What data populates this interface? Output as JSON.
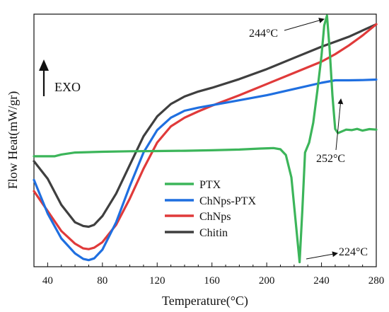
{
  "chart_data": {
    "type": "line",
    "title": "",
    "xlabel": "Temperature(°C)",
    "ylabel": "Flow Heat(mW/gr)",
    "xlim": [
      30,
      280
    ],
    "ylim": [
      0,
      100
    ],
    "x_ticks": [
      40,
      80,
      120,
      160,
      200,
      240,
      280
    ],
    "x_tick_labels": [
      "40",
      "80",
      "120",
      "160",
      "200",
      "240",
      "280"
    ],
    "y_tick_labels_shown": false,
    "grid": false,
    "legend_position": "lower-center",
    "exo_label": "EXO",
    "series": [
      {
        "name": "PTX",
        "color": "#3cb55a",
        "x": [
          30,
          38,
          45,
          50,
          60,
          80,
          100,
          120,
          140,
          160,
          180,
          195,
          205,
          210,
          214,
          218,
          221,
          224,
          226,
          228,
          231,
          234,
          237,
          240,
          242,
          244,
          246,
          248,
          250,
          252,
          255,
          258,
          262,
          266,
          270,
          275,
          280
        ],
        "y": [
          43.5,
          43.5,
          43.5,
          44.2,
          45.0,
          45.3,
          45.5,
          45.6,
          45.7,
          45.9,
          46.2,
          46.6,
          46.8,
          46.3,
          44.0,
          35.0,
          18.0,
          1.0,
          22.0,
          45.0,
          49.0,
          57.0,
          70.0,
          84.0,
          96.0,
          100.0,
          86.0,
          68.0,
          54.5,
          52.8,
          53.5,
          54.2,
          54.0,
          54.5,
          53.8,
          54.4,
          54.2
        ]
      },
      {
        "name": "ChNps-PTX",
        "color": "#1f6fe0",
        "x": [
          30,
          40,
          50,
          60,
          66,
          70,
          74,
          80,
          90,
          100,
          110,
          120,
          130,
          140,
          150,
          160,
          180,
          200,
          220,
          240,
          250,
          260,
          270,
          280
        ],
        "y": [
          34.0,
          20.5,
          10.5,
          4.5,
          2.3,
          1.8,
          2.5,
          6.0,
          17.0,
          31.5,
          45.0,
          54.0,
          59.0,
          61.8,
          63.0,
          64.0,
          66.0,
          68.0,
          70.5,
          73.0,
          74.0,
          74.0,
          74.1,
          74.3
        ]
      },
      {
        "name": "ChNps",
        "color": "#e03a3a",
        "x": [
          30,
          40,
          50,
          60,
          66,
          70,
          74,
          80,
          90,
          100,
          110,
          120,
          130,
          140,
          150,
          160,
          180,
          200,
          220,
          240,
          250,
          260,
          270,
          280
        ],
        "y": [
          29.5,
          21.5,
          13.5,
          8.4,
          6.5,
          6.2,
          6.8,
          9.0,
          16.0,
          26.5,
          38.5,
          49.0,
          55.5,
          59.0,
          61.5,
          63.8,
          68.0,
          72.5,
          77.0,
          81.5,
          84.5,
          88.0,
          92.0,
          96.5
        ]
      },
      {
        "name": "Chitin",
        "color": "#3f3f3f",
        "x": [
          30,
          40,
          50,
          60,
          66,
          70,
          74,
          80,
          90,
          100,
          110,
          120,
          130,
          140,
          150,
          160,
          180,
          200,
          220,
          240,
          250,
          260,
          270,
          280
        ],
        "y": [
          41.5,
          34.5,
          24.0,
          17.0,
          15.5,
          15.2,
          16.0,
          19.5,
          28.5,
          40.0,
          51.5,
          59.5,
          64.5,
          67.5,
          69.5,
          71.0,
          74.5,
          78.5,
          83.0,
          87.5,
          89.5,
          91.5,
          94.0,
          96.5
        ]
      }
    ],
    "annotations": [
      {
        "text": "244°C",
        "x": 244,
        "y": 100
      },
      {
        "text": "252°C",
        "x": 252,
        "y": 58
      },
      {
        "text": "224°C",
        "x": 224,
        "y": 1
      }
    ]
  }
}
